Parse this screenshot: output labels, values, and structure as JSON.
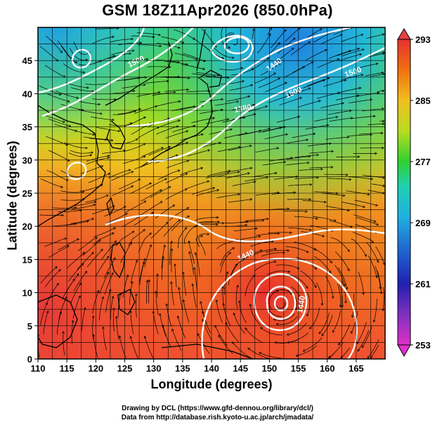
{
  "title": "GSM 18Z11Apr2026 (850.0hPa)",
  "x_axis": {
    "label": "Longitude (degrees)",
    "range": [
      110,
      170
    ],
    "ticks": [
      "110",
      "115",
      "120",
      "125",
      "130",
      "135",
      "140",
      "145",
      "150",
      "155",
      "160",
      "165"
    ]
  },
  "y_axis": {
    "label": "Latitude  (degrees)",
    "range": [
      0,
      50
    ],
    "ticks": [
      "0",
      "5",
      "10",
      "15",
      "20",
      "25",
      "30",
      "35",
      "40",
      "45"
    ]
  },
  "colorbar": {
    "range": [
      253,
      293
    ],
    "ticks": [
      "253",
      "261",
      "269",
      "277",
      "285",
      "293"
    ],
    "colors": [
      "#e030c8",
      "#2020b0",
      "#2090e0",
      "#20d0d0",
      "#30d030",
      "#c0e020",
      "#f0b020",
      "#f06010",
      "#e83030"
    ]
  },
  "contour_labels": [
    "1500",
    "1440",
    "1380",
    "1500",
    "1440",
    "1440",
    "1500"
  ],
  "credits": {
    "line1": "Drawing by DCL (https://www.gfd-dennou.org/library/dcl/)",
    "line2": "Data from http://database.rish.kyoto-u.ac.jp/arch/jmadata/"
  }
}
